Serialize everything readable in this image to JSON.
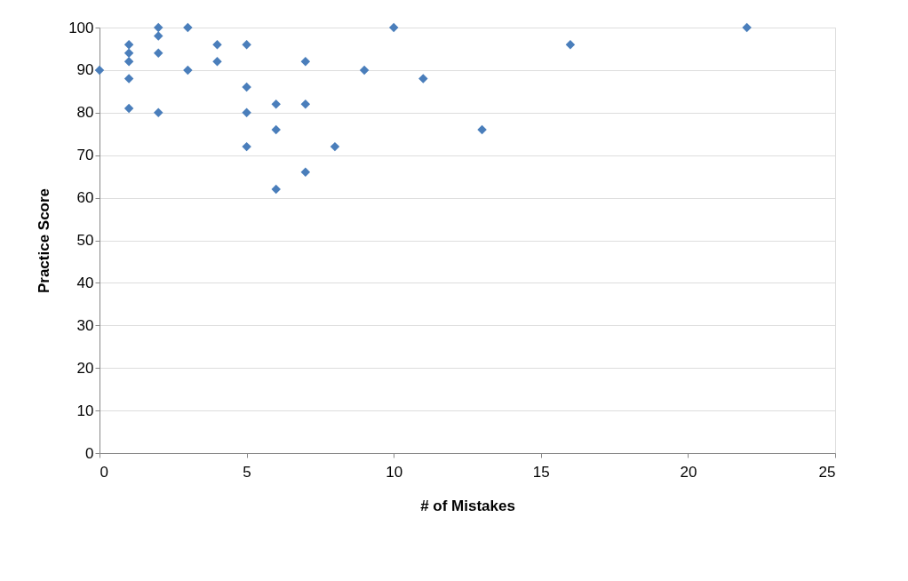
{
  "chart_data": {
    "type": "scatter",
    "xlabel": "# of Mistakes",
    "ylabel": "Practice Score",
    "xlim": [
      0,
      25
    ],
    "xticks": [
      0,
      5,
      10,
      15,
      20,
      25
    ],
    "ylim": [
      0,
      100
    ],
    "yticks": [
      0,
      10,
      20,
      30,
      40,
      50,
      60,
      70,
      80,
      90,
      100
    ],
    "grid": "y",
    "marker": "diamond",
    "series": [
      {
        "color": "#4a7ebb",
        "x": [
          0,
          1,
          1,
          1,
          1,
          1,
          2,
          2,
          2,
          2,
          3,
          3,
          4,
          4,
          5,
          5,
          5,
          5,
          6,
          6,
          6,
          7,
          7,
          7,
          8,
          9,
          10,
          11,
          13,
          16,
          22
        ],
        "values": [
          90,
          96,
          94,
          92,
          88,
          81,
          100,
          98,
          94,
          80,
          100,
          90,
          96,
          92,
          96,
          86,
          80,
          72,
          82,
          76,
          62,
          92,
          82,
          66,
          72,
          90,
          100,
          88,
          76,
          96,
          100
        ]
      }
    ]
  }
}
